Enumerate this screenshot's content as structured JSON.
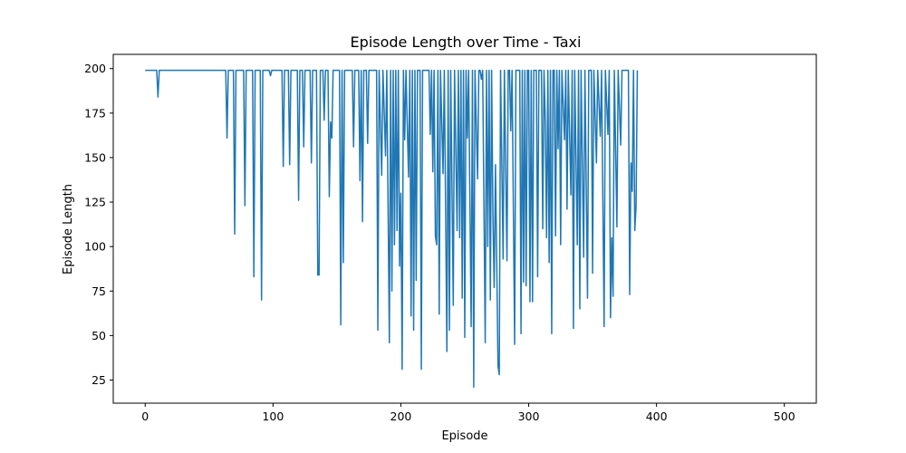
{
  "chart_data": {
    "type": "line",
    "title": "Episode Length over Time - Taxi",
    "xlabel": "Episode",
    "ylabel": "Episode Length",
    "xlim": [
      -25,
      525
    ],
    "ylim": [
      12,
      208
    ],
    "xticks": [
      0,
      100,
      200,
      300,
      400,
      500
    ],
    "yticks": [
      25,
      50,
      75,
      100,
      125,
      150,
      175,
      200
    ],
    "grid": false,
    "legend": "none",
    "color": "#1f77b4",
    "series": [
      {
        "points": [
          [
            0,
            199
          ],
          [
            9,
            199
          ],
          [
            10,
            184
          ],
          [
            11,
            199
          ],
          [
            63,
            199
          ],
          [
            64,
            161
          ],
          [
            65,
            199
          ],
          [
            69,
            199
          ],
          [
            70,
            107
          ],
          [
            71,
            199
          ],
          [
            77,
            199
          ],
          [
            78,
            123
          ],
          [
            79,
            199
          ],
          [
            84,
            199
          ],
          [
            85,
            83
          ],
          [
            86,
            199
          ],
          [
            90,
            199
          ],
          [
            91,
            70
          ],
          [
            92,
            199
          ],
          [
            97,
            199
          ],
          [
            98,
            196
          ],
          [
            99,
            199
          ],
          [
            107,
            199
          ],
          [
            108,
            145
          ],
          [
            109,
            199
          ],
          [
            112,
            199
          ],
          [
            113,
            146
          ],
          [
            114,
            199
          ],
          [
            119,
            199
          ],
          [
            120,
            126
          ],
          [
            121,
            199
          ],
          [
            123,
            199
          ],
          [
            124,
            156
          ],
          [
            125,
            199
          ],
          [
            129,
            199
          ],
          [
            130,
            147
          ],
          [
            131,
            199
          ],
          [
            134,
            199
          ],
          [
            135,
            84
          ],
          [
            136,
            84
          ],
          [
            137,
            199
          ],
          [
            139,
            199
          ],
          [
            140,
            171
          ],
          [
            141,
            199
          ],
          [
            143,
            199
          ],
          [
            144,
            128
          ],
          [
            145,
            170
          ],
          [
            146,
            161
          ],
          [
            147,
            199
          ],
          [
            152,
            199
          ],
          [
            153,
            56
          ],
          [
            154,
            199
          ],
          [
            155,
            91
          ],
          [
            156,
            199
          ],
          [
            162,
            199
          ],
          [
            163,
            156
          ],
          [
            164,
            199
          ],
          [
            167,
            199
          ],
          [
            168,
            137
          ],
          [
            169,
            199
          ],
          [
            170,
            114
          ],
          [
            171,
            199
          ],
          [
            173,
            199
          ],
          [
            174,
            158
          ],
          [
            175,
            199
          ],
          [
            180,
            199
          ],
          [
            181,
            199
          ],
          [
            182,
            53
          ],
          [
            183,
            199
          ],
          [
            185,
            140
          ],
          [
            186,
            199
          ],
          [
            188,
            151
          ],
          [
            189,
            199
          ],
          [
            191,
            46
          ],
          [
            192,
            199
          ],
          [
            193,
            75
          ],
          [
            194,
            199
          ],
          [
            195,
            101
          ],
          [
            196,
            199
          ],
          [
            197,
            109
          ],
          [
            198,
            199
          ],
          [
            199,
            89
          ],
          [
            200,
            130
          ],
          [
            201,
            31
          ],
          [
            202,
            199
          ],
          [
            203,
            160
          ],
          [
            204,
            199
          ],
          [
            206,
            139
          ],
          [
            207,
            199
          ],
          [
            208,
            61
          ],
          [
            209,
            199
          ],
          [
            210,
            53
          ],
          [
            211,
            199
          ],
          [
            212,
            81
          ],
          [
            213,
            199
          ],
          [
            215,
            199
          ],
          [
            216,
            31
          ],
          [
            217,
            199
          ],
          [
            222,
            199
          ],
          [
            223,
            163
          ],
          [
            224,
            199
          ],
          [
            225,
            142
          ],
          [
            226,
            199
          ],
          [
            227,
            106
          ],
          [
            228,
            101
          ],
          [
            229,
            199
          ],
          [
            230,
            62
          ],
          [
            231,
            199
          ],
          [
            233,
            141
          ],
          [
            234,
            199
          ],
          [
            236,
            41
          ],
          [
            237,
            199
          ],
          [
            238,
            53
          ],
          [
            239,
            199
          ],
          [
            241,
            67
          ],
          [
            242,
            199
          ],
          [
            244,
            109
          ],
          [
            245,
            199
          ],
          [
            246,
            105
          ],
          [
            247,
            199
          ],
          [
            248,
            71
          ],
          [
            249,
            199
          ],
          [
            250,
            49
          ],
          [
            251,
            199
          ],
          [
            252,
            161
          ],
          [
            253,
            199
          ],
          [
            255,
            55
          ],
          [
            256,
            199
          ],
          [
            257,
            21
          ],
          [
            258,
            199
          ],
          [
            260,
            138
          ],
          [
            261,
            199
          ],
          [
            262,
            199
          ],
          [
            263,
            194
          ],
          [
            264,
            199
          ],
          [
            266,
            46
          ],
          [
            267,
            199
          ],
          [
            268,
            100
          ],
          [
            269,
            199
          ],
          [
            270,
            70
          ],
          [
            271,
            199
          ],
          [
            272,
            118
          ],
          [
            273,
            77
          ],
          [
            274,
            146
          ],
          [
            275,
            92
          ],
          [
            276,
            33
          ],
          [
            277,
            28
          ],
          [
            278,
            199
          ],
          [
            280,
            93
          ],
          [
            281,
            199
          ],
          [
            283,
            92
          ],
          [
            284,
            199
          ],
          [
            285,
            199
          ],
          [
            286,
            165
          ],
          [
            287,
            199
          ],
          [
            289,
            45
          ],
          [
            290,
            199
          ],
          [
            293,
            199
          ],
          [
            294,
            51
          ],
          [
            295,
            199
          ],
          [
            296,
            80
          ],
          [
            297,
            199
          ],
          [
            298,
            78
          ],
          [
            299,
            199
          ],
          [
            300,
            199
          ],
          [
            301,
            69
          ],
          [
            302,
            199
          ],
          [
            303,
            69
          ],
          [
            304,
            199
          ],
          [
            306,
            199
          ],
          [
            307,
            83
          ],
          [
            308,
            199
          ],
          [
            310,
            199
          ],
          [
            311,
            110
          ],
          [
            312,
            199
          ],
          [
            313,
            170
          ],
          [
            314,
            105
          ],
          [
            315,
            199
          ],
          [
            316,
            91
          ],
          [
            317,
            199
          ],
          [
            318,
            51
          ],
          [
            319,
            199
          ],
          [
            320,
            199
          ],
          [
            321,
            106
          ],
          [
            322,
            199
          ],
          [
            323,
            155
          ],
          [
            324,
            199
          ],
          [
            325,
            101
          ],
          [
            326,
            199
          ],
          [
            328,
            160
          ],
          [
            329,
            199
          ],
          [
            330,
            121
          ],
          [
            331,
            199
          ],
          [
            333,
            129
          ],
          [
            334,
            199
          ],
          [
            335,
            54
          ],
          [
            336,
            199
          ],
          [
            338,
            101
          ],
          [
            339,
            199
          ],
          [
            340,
            65
          ],
          [
            341,
            199
          ],
          [
            343,
            94
          ],
          [
            344,
            199
          ],
          [
            346,
            71
          ],
          [
            347,
            199
          ],
          [
            349,
            199
          ],
          [
            350,
            85
          ],
          [
            351,
            199
          ],
          [
            353,
            147
          ],
          [
            354,
            199
          ],
          [
            356,
            162
          ],
          [
            357,
            199
          ],
          [
            359,
            55
          ],
          [
            360,
            199
          ],
          [
            362,
            163
          ],
          [
            363,
            199
          ],
          [
            364,
            60
          ],
          [
            365,
            105
          ],
          [
            366,
            72
          ],
          [
            367,
            199
          ],
          [
            369,
            111
          ],
          [
            370,
            199
          ],
          [
            372,
            157
          ],
          [
            373,
            199
          ],
          [
            376,
            199
          ],
          [
            378,
            199
          ],
          [
            379,
            73
          ],
          [
            380,
            147
          ],
          [
            381,
            131
          ],
          [
            382,
            199
          ],
          [
            383,
            109
          ],
          [
            384,
            123
          ],
          [
            385,
            199
          ]
        ]
      }
    ]
  }
}
